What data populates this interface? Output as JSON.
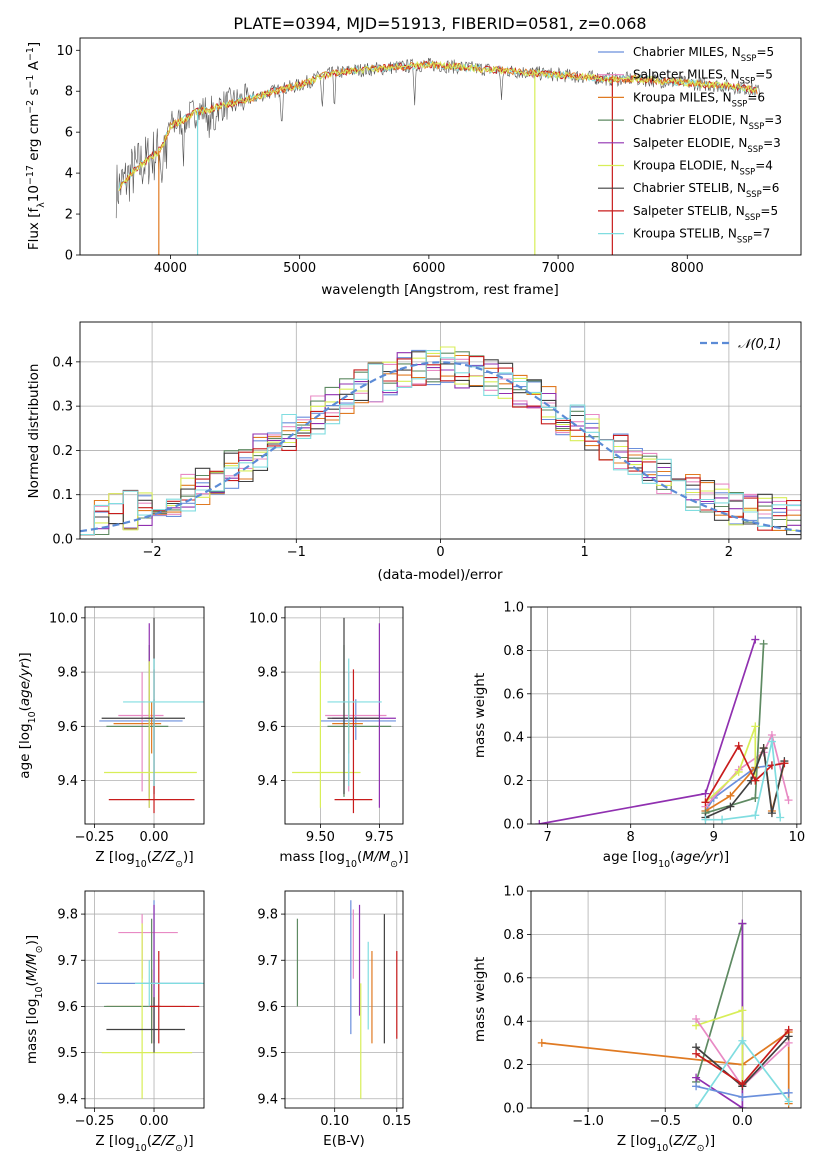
{
  "figure_title": "PLATE=0394, MJD=51913, FIBERID=0581, z=0.068",
  "colors": {
    "Chabrier MILES": "#6a8fdc",
    "Salpeter MILES": "#e88ac4",
    "Kroupa MILES": "#e07a22",
    "Chabrier ELODIE": "#5e8a62",
    "Salpeter ELODIE": "#9030b0",
    "Kroupa ELODIE": "#d8ee58",
    "Chabrier STELIB": "#404040",
    "Salpeter STELIB": "#c81c1c",
    "Kroupa STELIB": "#80dde0",
    "normal": "#5b8bd6"
  },
  "chart_data": [
    {
      "type": "line",
      "title": "PLATE=0394, MJD=51913, FIBERID=0581, z=0.068",
      "xlabel": "wavelength [Angstrom, rest frame]",
      "ylabel": "Flux [f_λ 10^-17 erg cm^-2 s^-1 A^-1]",
      "xlim": [
        3300,
        8880
      ],
      "ylim": [
        0,
        10.6
      ],
      "xticks": [
        "4000",
        "5000",
        "6000",
        "7000",
        "8000"
      ],
      "yticks": [
        "0",
        "2",
        "4",
        "6",
        "8",
        "10"
      ],
      "legend_position": "right",
      "series": [
        {
          "name": "Chabrier MILES",
          "nssp": "5"
        },
        {
          "name": "Salpeter MILES",
          "nssp": "5"
        },
        {
          "name": "Kroupa MILES",
          "nssp": "6"
        },
        {
          "name": "Chabrier ELODIE",
          "nssp": "3"
        },
        {
          "name": "Salpeter ELODIE",
          "nssp": "3"
        },
        {
          "name": "Kroupa ELODIE",
          "nssp": "4"
        },
        {
          "name": "Chabrier STELIB",
          "nssp": "6"
        },
        {
          "name": "Salpeter STELIB",
          "nssp": "5"
        },
        {
          "name": "Kroupa STELIB",
          "nssp": "7"
        }
      ],
      "continuum": {
        "x": [
          3580,
          3650,
          3700,
          3750,
          3800,
          3850,
          3900,
          3950,
          4000,
          4100,
          4200,
          4300,
          4400,
          4600,
          4800,
          5000,
          5200,
          5400,
          5600,
          5800,
          6000,
          6200,
          6400,
          6600,
          6800,
          7000,
          7200,
          7400,
          7600,
          7800,
          8000,
          8200,
          8400,
          8550
        ],
        "y": [
          3.2,
          3.6,
          4.0,
          4.3,
          4.5,
          4.8,
          5.0,
          5.5,
          6.3,
          6.6,
          7.0,
          7.1,
          7.3,
          7.6,
          8.0,
          8.3,
          8.8,
          9.0,
          9.1,
          9.2,
          9.3,
          9.2,
          9.1,
          9.0,
          8.9,
          8.8,
          8.7,
          8.6,
          8.6,
          8.5,
          8.4,
          8.3,
          8.2,
          8.0
        ]
      },
      "drop_lines_x": [
        3910,
        4210,
        6820,
        7420
      ]
    },
    {
      "type": "histogram",
      "xlabel": "(data-model)/error",
      "ylabel": "Normed distribution",
      "xlim": [
        -2.5,
        2.5
      ],
      "ylim": [
        0,
        0.49
      ],
      "xticks": [
        "−2",
        "−1",
        "0",
        "1",
        "2"
      ],
      "yticks": [
        "0.0",
        "0.1",
        "0.2",
        "0.3",
        "0.4"
      ],
      "bin_width": 0.1,
      "reference": {
        "name": "𝒩(0,1)",
        "mean": 0,
        "sigma": 1
      },
      "legend_position": "top-right"
    },
    {
      "type": "errorbar",
      "xlabel": "Z [log10(Z/Z⊙)]",
      "ylabel": "age  [log10(age/yr)]",
      "xlim": [
        -0.29,
        0.21
      ],
      "ylim": [
        9.24,
        10.04
      ],
      "xticks": [
        -0.25,
        0.0
      ],
      "xtick_labels": [
        "−0.25",
        "0.00"
      ],
      "yticks": [
        9.4,
        9.6,
        9.8,
        10.0
      ],
      "ytick_labels": [
        "9.4",
        "9.6",
        "9.8",
        "10.0"
      ],
      "points": [
        {
          "series": "Chabrier MILES",
          "x": 0.0,
          "y": 9.62,
          "x_lo": -0.23,
          "x_hi": 0.12,
          "y_lo": 9.55,
          "y_hi": 9.7
        },
        {
          "series": "Salpeter MILES",
          "x": -0.05,
          "y": 9.64,
          "x_lo": -0.15,
          "x_hi": 0.04,
          "y_lo": 9.36,
          "y_hi": 9.8
        },
        {
          "series": "Kroupa MILES",
          "x": -0.01,
          "y": 9.61,
          "x_lo": -0.17,
          "x_hi": 0.03,
          "y_lo": 9.5,
          "y_hi": 9.69
        },
        {
          "series": "Chabrier ELODIE",
          "x": -0.02,
          "y": 9.6,
          "x_lo": -0.2,
          "x_hi": 0.06,
          "y_lo": 9.34,
          "y_hi": 9.9
        },
        {
          "series": "Salpeter ELODIE",
          "x": -0.02,
          "y": 9.63,
          "x_lo": -0.04,
          "x_hi": 0.0,
          "y_lo": 9.3,
          "y_hi": 9.98
        },
        {
          "series": "Kroupa ELODIE",
          "x": -0.02,
          "y": 9.43,
          "x_lo": -0.21,
          "x_hi": 0.18,
          "y_lo": 9.3,
          "y_hi": 9.84
        },
        {
          "series": "Chabrier STELIB",
          "x": 0.0,
          "y": 9.63,
          "x_lo": -0.22,
          "x_hi": 0.13,
          "y_lo": 9.35,
          "y_hi": 10.0
        },
        {
          "series": "Salpeter STELIB",
          "x": 0.0,
          "y": 9.33,
          "x_lo": -0.19,
          "x_hi": 0.17,
          "y_lo": 9.28,
          "y_hi": 9.81
        },
        {
          "series": "Kroupa STELIB",
          "x": 0.0,
          "y": 9.69,
          "x_lo": -0.13,
          "x_hi": 0.21,
          "y_lo": 9.38,
          "y_hi": 9.85
        }
      ]
    },
    {
      "type": "errorbar",
      "xlabel": "mass [log10(M/M⊙)]",
      "ylabel": "",
      "xlim": [
        9.35,
        9.85
      ],
      "ylim": [
        9.24,
        10.04
      ],
      "xticks": [
        9.5,
        9.75
      ],
      "xtick_labels": [
        "9.50",
        "9.75"
      ],
      "yticks": [
        9.4,
        9.6,
        9.8,
        10.0
      ],
      "ytick_labels": [
        "9.4",
        "9.6",
        "9.8",
        "10.0"
      ],
      "points": [
        {
          "series": "Chabrier MILES",
          "x": 9.65,
          "y": 9.62,
          "x_lo": 9.5,
          "x_hi": 9.82,
          "y_lo": 9.55,
          "y_hi": 9.7
        },
        {
          "series": "Salpeter MILES",
          "x": 9.62,
          "y": 9.64,
          "x_lo": 9.52,
          "x_hi": 9.78,
          "y_lo": 9.36,
          "y_hi": 9.8
        },
        {
          "series": "Kroupa MILES",
          "x": 9.62,
          "y": 9.61,
          "x_lo": 9.55,
          "x_hi": 9.68,
          "y_lo": 9.5,
          "y_hi": 9.69
        },
        {
          "series": "Chabrier ELODIE",
          "x": 9.6,
          "y": 9.6,
          "x_lo": 9.53,
          "x_hi": 9.8,
          "y_lo": 9.34,
          "y_hi": 9.9
        },
        {
          "series": "Salpeter ELODIE",
          "x": 9.75,
          "y": 9.63,
          "x_lo": 9.55,
          "x_hi": 9.82,
          "y_lo": 9.3,
          "y_hi": 9.98
        },
        {
          "series": "Kroupa ELODIE",
          "x": 9.5,
          "y": 9.43,
          "x_lo": 9.38,
          "x_hi": 9.67,
          "y_lo": 9.3,
          "y_hi": 9.84
        },
        {
          "series": "Chabrier STELIB",
          "x": 9.6,
          "y": 9.63,
          "x_lo": 9.53,
          "x_hi": 9.75,
          "y_lo": 9.35,
          "y_hi": 10.0
        },
        {
          "series": "Salpeter STELIB",
          "x": 9.64,
          "y": 9.33,
          "x_lo": 9.56,
          "x_hi": 9.72,
          "y_lo": 9.28,
          "y_hi": 9.81
        },
        {
          "series": "Kroupa STELIB",
          "x": 9.62,
          "y": 9.69,
          "x_lo": 9.53,
          "x_hi": 9.76,
          "y_lo": 9.38,
          "y_hi": 9.85
        }
      ]
    },
    {
      "type": "line",
      "xlabel": "age  [log10(age/yr)]",
      "ylabel": "mass weight",
      "xlim": [
        6.8,
        10.05
      ],
      "ylim": [
        0,
        1.0
      ],
      "xticks": [
        7,
        8,
        9,
        10
      ],
      "xtick_labels": [
        "7",
        "8",
        "9",
        "10"
      ],
      "yticks": [
        0,
        0.2,
        0.4,
        0.6,
        0.8,
        1.0
      ],
      "ytick_labels": [
        "0.0",
        "0.2",
        "0.4",
        "0.6",
        "0.8",
        "1.0"
      ],
      "series": [
        {
          "name": "Chabrier MILES",
          "x": [
            8.9,
            9.0,
            9.5,
            9.7,
            9.85
          ],
          "y": [
            0.06,
            0.12,
            0.26,
            0.27,
            0.28
          ]
        },
        {
          "name": "Salpeter MILES",
          "x": [
            8.9,
            9.3,
            9.6,
            9.7,
            9.9
          ],
          "y": [
            0.08,
            0.25,
            0.33,
            0.41,
            0.11
          ]
        },
        {
          "name": "Kroupa MILES",
          "x": [
            8.9,
            9.2,
            9.5,
            9.6,
            9.7,
            9.85
          ],
          "y": [
            0.06,
            0.13,
            0.26,
            0.35,
            0.06,
            0.28
          ]
        },
        {
          "name": "Chabrier ELODIE",
          "x": [
            8.9,
            9.5,
            9.6
          ],
          "y": [
            0.05,
            0.12,
            0.83
          ]
        },
        {
          "name": "Salpeter ELODIE",
          "x": [
            6.9,
            8.9,
            9.5
          ],
          "y": [
            0.0,
            0.14,
            0.85
          ]
        },
        {
          "name": "Kroupa ELODIE",
          "x": [
            8.9,
            9.3,
            9.5,
            9.5
          ],
          "y": [
            0.1,
            0.24,
            0.45,
            0.2
          ]
        },
        {
          "name": "Chabrier STELIB",
          "x": [
            8.9,
            9.2,
            9.45,
            9.6,
            9.7,
            9.85
          ],
          "y": [
            0.03,
            0.08,
            0.2,
            0.35,
            0.05,
            0.29
          ]
        },
        {
          "name": "Salpeter STELIB",
          "x": [
            8.9,
            9.3,
            9.5,
            9.7,
            9.85
          ],
          "y": [
            0.1,
            0.36,
            0.2,
            0.27,
            0.28
          ]
        },
        {
          "name": "Kroupa STELIB",
          "x": [
            8.9,
            9.1,
            9.5,
            9.7,
            9.8
          ],
          "y": [
            0.02,
            0.02,
            0.04,
            0.38,
            0.03
          ]
        }
      ]
    },
    {
      "type": "errorbar",
      "xlabel": "Z [log10(Z/Z⊙)]",
      "ylabel": "mass [log10(M/M⊙)]",
      "xlim": [
        -0.29,
        0.21
      ],
      "ylim": [
        9.38,
        9.85
      ],
      "xticks": [
        -0.25,
        0.0
      ],
      "xtick_labels": [
        "−0.25",
        "0.00"
      ],
      "yticks": [
        9.4,
        9.5,
        9.6,
        9.7,
        9.8
      ],
      "ytick_labels": [
        "9.4",
        "9.5",
        "9.6",
        "9.7",
        "9.8"
      ],
      "points": [
        {
          "series": "Chabrier MILES",
          "x": 0.0,
          "y": 9.65,
          "x_lo": -0.24,
          "x_hi": 0.2,
          "y_lo": 9.52,
          "y_hi": 9.83
        },
        {
          "series": "Salpeter MILES",
          "x": -0.05,
          "y": 9.76,
          "x_lo": -0.15,
          "x_hi": 0.1,
          "y_lo": 9.66,
          "y_hi": 9.8
        },
        {
          "series": "Kroupa MILES",
          "x": -0.01,
          "y": 9.6,
          "x_lo": -0.2,
          "x_hi": 0.13,
          "y_lo": 9.52,
          "y_hi": 9.68
        },
        {
          "series": "Chabrier ELODIE",
          "x": -0.01,
          "y": 9.6,
          "x_lo": -0.21,
          "x_hi": 0.03,
          "y_lo": 9.52,
          "y_hi": 9.79
        },
        {
          "series": "Salpeter ELODIE",
          "x": 0.0,
          "y": 9.6,
          "x_lo": -0.02,
          "x_hi": 0.02,
          "y_lo": 9.52,
          "y_hi": 9.82
        },
        {
          "series": "Kroupa ELODIE",
          "x": -0.05,
          "y": 9.5,
          "x_lo": -0.22,
          "x_hi": 0.16,
          "y_lo": 9.4,
          "y_hi": 9.78
        },
        {
          "series": "Chabrier STELIB",
          "x": 0.0,
          "y": 9.55,
          "x_lo": -0.2,
          "x_hi": 0.13,
          "y_lo": 9.5,
          "y_hi": 9.62
        },
        {
          "series": "Salpeter STELIB",
          "x": 0.02,
          "y": 9.6,
          "x_lo": -0.02,
          "x_hi": 0.19,
          "y_lo": 9.52,
          "y_hi": 9.72
        },
        {
          "series": "Kroupa STELIB",
          "x": -0.02,
          "y": 9.65,
          "x_lo": -0.08,
          "x_hi": 0.21,
          "y_lo": 9.6,
          "y_hi": 9.7
        }
      ]
    },
    {
      "type": "errorbar",
      "xlabel": "E(B-V)",
      "ylabel": "",
      "xlim": [
        0.06,
        0.155
      ],
      "ylim": [
        9.38,
        9.85
      ],
      "xticks": [
        0.1,
        0.15
      ],
      "xtick_labels": [
        "0.10",
        "0.15"
      ],
      "yticks": [
        9.4,
        9.5,
        9.6,
        9.7,
        9.8
      ],
      "ytick_labels": [
        "9.4",
        "9.5",
        "9.6",
        "9.7",
        "9.8"
      ],
      "points": [
        {
          "series": "Chabrier ELODIE",
          "x": 0.07,
          "y": 9.7,
          "y_lo": 9.6,
          "y_hi": 9.79
        },
        {
          "series": "Chabrier MILES",
          "x": 0.113,
          "y": 9.68,
          "y_lo": 9.54,
          "y_hi": 9.83
        },
        {
          "series": "Salpeter MILES",
          "x": 0.115,
          "y": 9.76,
          "y_lo": 9.66,
          "y_hi": 9.81
        },
        {
          "series": "Salpeter ELODIE",
          "x": 0.12,
          "y": 9.7,
          "y_lo": 9.58,
          "y_hi": 9.82
        },
        {
          "series": "Kroupa ELODIE",
          "x": 0.121,
          "y": 9.5,
          "y_lo": 9.4,
          "y_hi": 9.65
        },
        {
          "series": "Kroupa STELIB",
          "x": 0.127,
          "y": 9.65,
          "y_lo": 9.55,
          "y_hi": 9.74
        },
        {
          "series": "Kroupa MILES",
          "x": 0.13,
          "y": 9.62,
          "y_lo": 9.52,
          "y_hi": 9.72
        },
        {
          "series": "Chabrier STELIB",
          "x": 0.14,
          "y": 9.66,
          "y_lo": 9.52,
          "y_hi": 9.8
        },
        {
          "series": "Salpeter STELIB",
          "x": 0.15,
          "y": 9.62,
          "y_lo": 9.53,
          "y_hi": 9.72
        }
      ]
    },
    {
      "type": "line",
      "xlabel": "Z [log10(Z/Z⊙)]",
      "ylabel": "mass weight",
      "xlim": [
        -1.37,
        0.38
      ],
      "ylim": [
        0,
        1.0
      ],
      "xticks": [
        -1.0,
        -0.5,
        0.0
      ],
      "xtick_labels": [
        "−1.0",
        "−0.5",
        "0.0"
      ],
      "yticks": [
        0,
        0.2,
        0.4,
        0.6,
        0.8,
        1.0
      ],
      "ytick_labels": [
        "0.0",
        "0.2",
        "0.4",
        "0.6",
        "0.8",
        "1.0"
      ],
      "series": [
        {
          "name": "Kroupa MILES",
          "x": [
            -1.3,
            0.0,
            0.3,
            0.3
          ],
          "y": [
            0.3,
            0.2,
            0.35,
            0.02
          ]
        },
        {
          "name": "Chabrier ELODIE",
          "x": [
            -0.3,
            0.0,
            0.0
          ],
          "y": [
            0.12,
            0.85,
            0.1
          ]
        },
        {
          "name": "Salpeter ELODIE",
          "x": [
            -0.3,
            0.0,
            0.0
          ],
          "y": [
            0.14,
            0.0,
            0.85
          ]
        },
        {
          "name": "Kroupa ELODIE",
          "x": [
            -0.3,
            0.0,
            0.0
          ],
          "y": [
            0.38,
            0.45,
            0.1
          ]
        },
        {
          "name": "Chabrier MILES",
          "x": [
            -0.3,
            0.0,
            0.3
          ],
          "y": [
            0.1,
            0.05,
            0.07
          ]
        },
        {
          "name": "Salpeter MILES",
          "x": [
            -0.3,
            0.0,
            0.3
          ],
          "y": [
            0.41,
            0.1,
            0.3
          ]
        },
        {
          "name": "Chabrier STELIB",
          "x": [
            -0.3,
            0.0,
            0.3
          ],
          "y": [
            0.28,
            0.1,
            0.33
          ]
        },
        {
          "name": "Salpeter STELIB",
          "x": [
            -0.3,
            0.0,
            0.3
          ],
          "y": [
            0.25,
            0.11,
            0.36
          ]
        },
        {
          "name": "Kroupa STELIB",
          "x": [
            -0.3,
            0.0,
            0.3
          ],
          "y": [
            0.0,
            0.31,
            0.03
          ]
        }
      ]
    }
  ]
}
